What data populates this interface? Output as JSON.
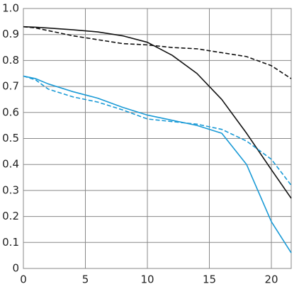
{
  "chart_data": {
    "type": "line",
    "x": [
      0,
      1,
      2,
      4,
      6,
      8,
      10,
      12,
      14,
      16,
      18,
      20,
      21.6
    ],
    "series": [
      {
        "color": "#111111",
        "dash": false,
        "values": [
          0.93,
          0.928,
          0.925,
          0.918,
          0.91,
          0.895,
          0.87,
          0.82,
          0.75,
          0.65,
          0.52,
          0.38,
          0.27
        ]
      },
      {
        "color": "#111111",
        "dash": true,
        "values": [
          0.93,
          0.925,
          0.915,
          0.895,
          0.88,
          0.865,
          0.86,
          0.85,
          0.845,
          0.83,
          0.815,
          0.78,
          0.73
        ]
      },
      {
        "color": "#1a9ad6",
        "dash": false,
        "values": [
          0.74,
          0.73,
          0.71,
          0.68,
          0.655,
          0.62,
          0.59,
          0.57,
          0.55,
          0.52,
          0.4,
          0.18,
          0.06
        ]
      },
      {
        "color": "#1a9ad6",
        "dash": true,
        "values": [
          0.74,
          0.725,
          0.69,
          0.66,
          0.64,
          0.61,
          0.575,
          0.565,
          0.555,
          0.535,
          0.49,
          0.42,
          0.32
        ]
      }
    ],
    "xlim": [
      0,
      21.6
    ],
    "ylim": [
      0,
      1
    ],
    "xticks": [
      0,
      5,
      10,
      15,
      20
    ],
    "yticks": [
      0,
      0.1,
      0.2,
      0.3,
      0.4,
      0.5,
      0.6,
      0.7,
      0.8,
      0.9,
      {
        "value": 1,
        "label": "1.0"
      }
    ],
    "grid": true
  }
}
